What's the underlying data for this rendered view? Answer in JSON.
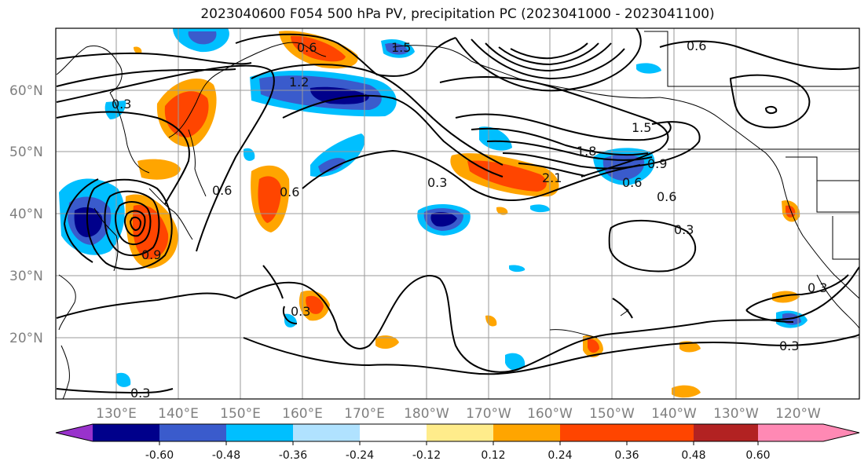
{
  "title": "2023040600 F054 500 hPa PV, precipitation PC (2023041000 - 2023041100)",
  "lat_labels": [
    "60°N",
    "50°N",
    "40°N",
    "30°N",
    "20°N"
  ],
  "lon_labels": [
    "130°E",
    "140°E",
    "150°E",
    "160°E",
    "170°E",
    "180°W",
    "170°W",
    "160°W",
    "150°W",
    "140°W",
    "130°W",
    "120°W"
  ],
  "contour_labels": [
    "0.3",
    "0.3",
    "0.3",
    "0.3",
    "0.3",
    "0.3",
    "0.6",
    "0.6",
    "0.6",
    "0.6",
    "0.6",
    "0.9",
    "1.2",
    "1.5",
    "1.5",
    "1.8",
    "2.1",
    "0.9",
    "0.6",
    "0.3"
  ],
  "colorbar": {
    "ticks": [
      "-0.60",
      "-0.48",
      "-0.36",
      "-0.24",
      "-0.12",
      "0.12",
      "0.24",
      "0.36",
      "0.48",
      "0.60"
    ],
    "colors": [
      "#9932cc",
      "#00008b",
      "#3a5bcc",
      "#00bfff",
      "#b0e2ff",
      "#ffffff",
      "#ffec8b",
      "#ffa500",
      "#ff4500",
      "#b22222",
      "#ff89b4"
    ]
  }
}
